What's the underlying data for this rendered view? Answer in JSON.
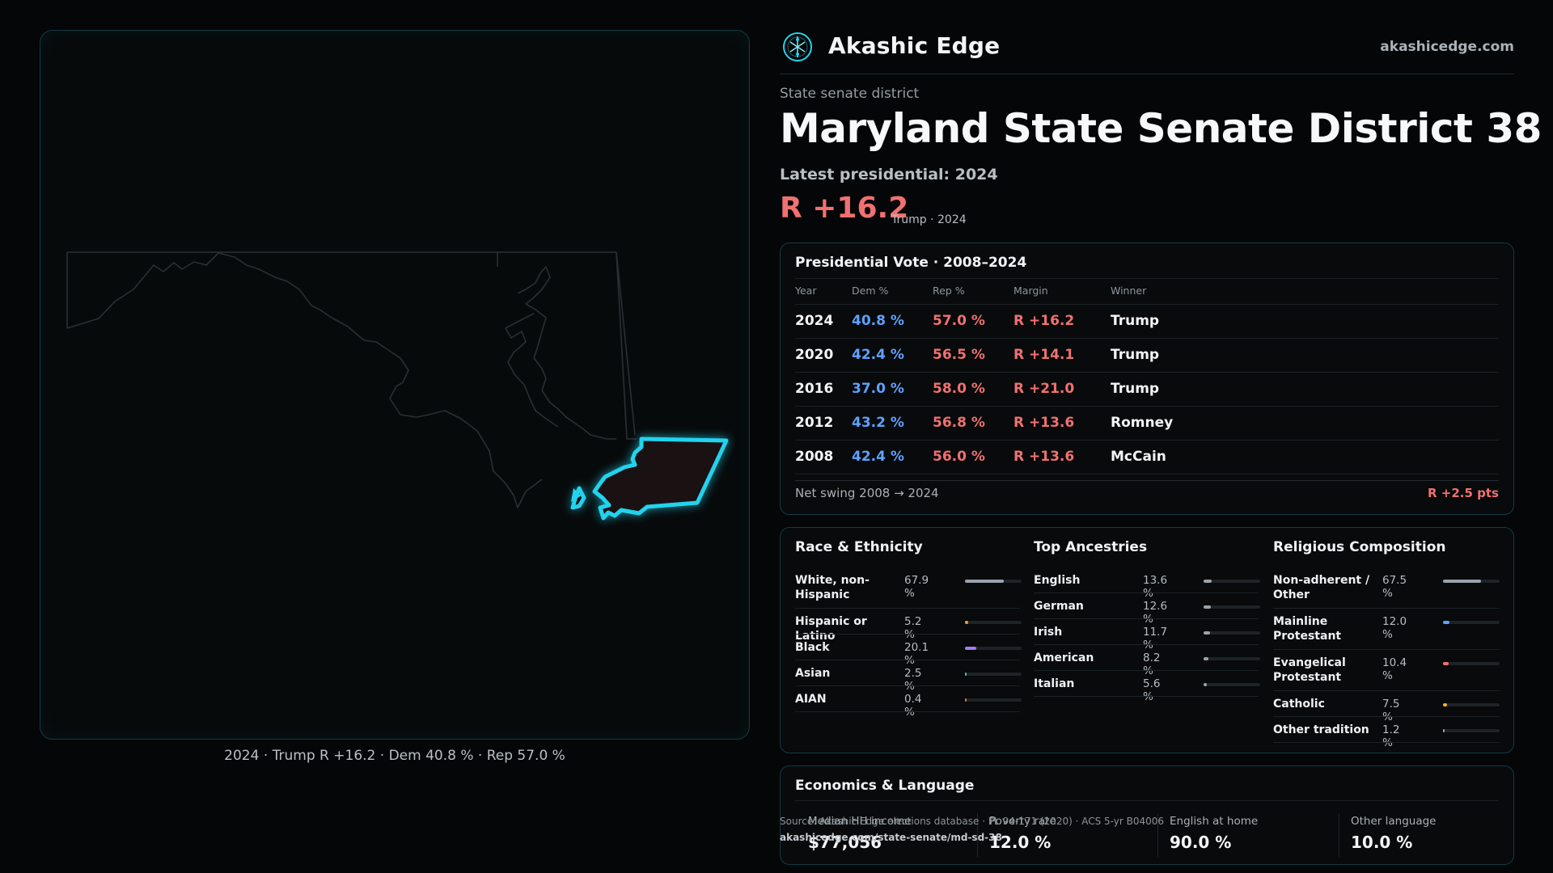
{
  "brand": {
    "name": "Akashic Edge",
    "url": "akashicedge.com",
    "logo_icon": "akashic-edge-logo-icon",
    "accent": "#22d3ee"
  },
  "district": {
    "kind": "State senate district",
    "title": "Maryland State Senate District 38",
    "latest_label": "Latest presidential: 2024",
    "margin": "R +16.2",
    "margin_sub": "Trump · 2024"
  },
  "map": {
    "caption": "2024 · Trump R +16.2 · Dem 40.8 % · Rep 57.0 %",
    "highlight_color": "#22d3ee",
    "state_outline_color": "#2a2f33"
  },
  "presidential": {
    "title": "Presidential Vote · 2008–2024",
    "headers": [
      "Year",
      "Dem %",
      "Rep %",
      "Margin",
      "Winner"
    ],
    "rows": [
      {
        "year": "2024",
        "dem": "40.8 %",
        "rep": "57.0 %",
        "margin": "R +16.2",
        "winner": "Trump"
      },
      {
        "year": "2020",
        "dem": "42.4 %",
        "rep": "56.5 %",
        "margin": "R +14.1",
        "winner": "Trump"
      },
      {
        "year": "2016",
        "dem": "37.0 %",
        "rep": "58.0 %",
        "margin": "R +21.0",
        "winner": "Trump"
      },
      {
        "year": "2012",
        "dem": "43.2 %",
        "rep": "56.8 %",
        "margin": "R +13.6",
        "winner": "Romney"
      },
      {
        "year": "2008",
        "dem": "42.4 %",
        "rep": "56.0 %",
        "margin": "R +13.6",
        "winner": "McCain"
      }
    ],
    "swing_label": "Net swing 2008 → 2024",
    "swing_value": "R +2.5 pts",
    "colors": {
      "dem": "#5ea1ff",
      "rep": "#f07171"
    }
  },
  "race": {
    "title": "Race & Ethnicity",
    "items": [
      {
        "label": "White, non-Hispanic",
        "value": "67.9 %",
        "share": 67.9,
        "color": "#9aa3ab"
      },
      {
        "label": "Hispanic or Latino",
        "value": "5.2 %",
        "share": 5.2,
        "color": "#f0a33a"
      },
      {
        "label": "Black",
        "value": "20.1 %",
        "share": 20.1,
        "color": "#a07cf0"
      },
      {
        "label": "Asian",
        "value": "2.5 %",
        "share": 2.5,
        "color": "#2ad0a0"
      },
      {
        "label": "AIAN",
        "value": "0.4 %",
        "share": 0.4,
        "color": "#e0704a"
      }
    ]
  },
  "ancestry": {
    "title": "Top Ancestries",
    "items": [
      {
        "label": "English",
        "value": "13.6 %",
        "share": 13.6,
        "color": "#9aa3ab"
      },
      {
        "label": "German",
        "value": "12.6 %",
        "share": 12.6,
        "color": "#9aa3ab"
      },
      {
        "label": "Irish",
        "value": "11.7 %",
        "share": 11.7,
        "color": "#9aa3ab"
      },
      {
        "label": "American",
        "value": "8.2 %",
        "share": 8.2,
        "color": "#9aa3ab"
      },
      {
        "label": "Italian",
        "value": "5.6 %",
        "share": 5.6,
        "color": "#9aa3ab"
      }
    ]
  },
  "religion": {
    "title": "Religious Composition",
    "items": [
      {
        "label": "Non-adherent / Other",
        "value": "67.5 %",
        "share": 67.5,
        "color": "#9aa3ab"
      },
      {
        "label": "Mainline Protestant",
        "value": "12.0 %",
        "share": 12.0,
        "color": "#5ea1ff"
      },
      {
        "label": "Evangelical Protestant",
        "value": "10.4 %",
        "share": 10.4,
        "color": "#f07171"
      },
      {
        "label": "Catholic",
        "value": "7.5 %",
        "share": 7.5,
        "color": "#f0b030"
      },
      {
        "label": "Other tradition",
        "value": "1.2 %",
        "share": 1.2,
        "color": "#9aa3ab"
      }
    ]
  },
  "economics": {
    "title": "Economics & Language",
    "stats": [
      {
        "label": "Median HH income",
        "value": "$77,056"
      },
      {
        "label": "Poverty rate",
        "value": "12.0 %"
      },
      {
        "label": "English at home",
        "value": "90.0 %"
      },
      {
        "label": "Other language",
        "value": "10.0 %"
      }
    ]
  },
  "source": {
    "text": "Source: Akashic Edge elections database · PL 94-171 (2020) · ACS 5-yr B04006",
    "url": "akashicedge.com/state-senate/md-sd-38"
  }
}
